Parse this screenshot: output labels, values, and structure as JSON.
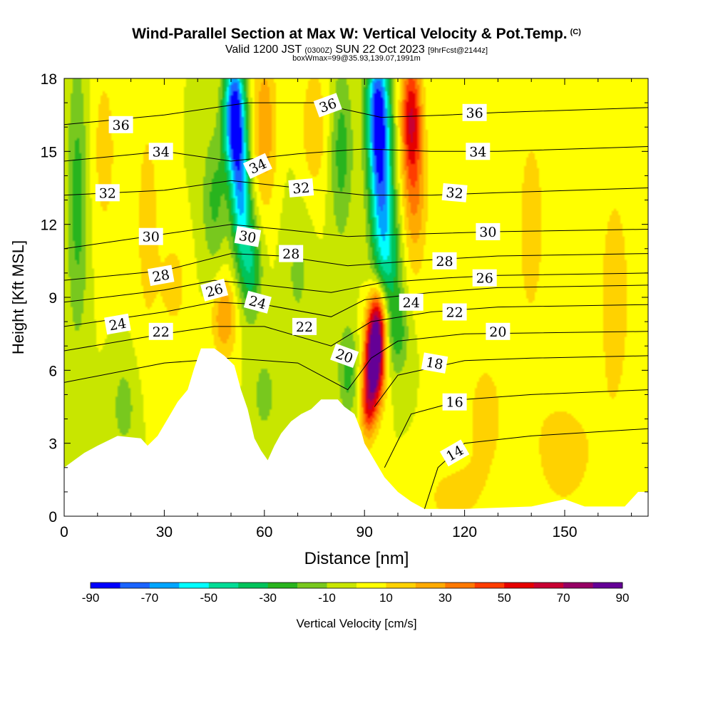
{
  "header": {
    "title": "Wind-Parallel Section at Max W: Vertical Velocity & Pot.Temp.",
    "copyright": "(C)",
    "valid_prefix": "Valid 1200 JST",
    "valid_utc": "(0300Z)",
    "valid_date": "SUN 22 Oct 2023",
    "forecast_info": "[9hrFcst@2144z]",
    "box_info": "boxWmax=99@35.93,139.07,1991m"
  },
  "chart_data": {
    "type": "heatmap",
    "xlabel": "Distance [nm]",
    "ylabel": "Height [Kft MSL]",
    "xlim": [
      0,
      175
    ],
    "ylim": [
      0,
      18
    ],
    "x_ticks": [
      "0",
      "30",
      "60",
      "90",
      "120",
      "150"
    ],
    "y_ticks": [
      "0",
      "3",
      "6",
      "9",
      "12",
      "15",
      "18"
    ],
    "colorbar": {
      "label": "Vertical Velocity [cm/s]",
      "tick_labels": [
        "-90",
        "-70",
        "-50",
        "-30",
        "-10",
        "10",
        "30",
        "50",
        "70",
        "90"
      ],
      "levels": [
        -90,
        -80,
        -70,
        -60,
        -50,
        -40,
        -30,
        -20,
        -10,
        0,
        10,
        20,
        30,
        40,
        50,
        60,
        70,
        80,
        90
      ],
      "colors": [
        "#0000ff",
        "#1a64ff",
        "#00a5ff",
        "#00ffff",
        "#00dc96",
        "#00c35a",
        "#28b41e",
        "#78c81e",
        "#c8e600",
        "#ffff00",
        "#ffd200",
        "#ffaa00",
        "#ff7800",
        "#ff3c00",
        "#e60000",
        "#c80032",
        "#960064",
        "#640096"
      ]
    },
    "terrain_profile_kft": [
      [
        0,
        2.0
      ],
      [
        3,
        2.3
      ],
      [
        6,
        2.6
      ],
      [
        10,
        2.9
      ],
      [
        16,
        3.3
      ],
      [
        23,
        3.2
      ],
      [
        25,
        2.9
      ],
      [
        28,
        3.3
      ],
      [
        31,
        4.0
      ],
      [
        34,
        4.7
      ],
      [
        37,
        5.2
      ],
      [
        39,
        6.1
      ],
      [
        41,
        6.9
      ],
      [
        45,
        6.9
      ],
      [
        48,
        6.6
      ],
      [
        51,
        6.2
      ],
      [
        53,
        5.2
      ],
      [
        55,
        4.4
      ],
      [
        57,
        3.2
      ],
      [
        59,
        2.7
      ],
      [
        61,
        2.3
      ],
      [
        63,
        2.9
      ],
      [
        65,
        3.4
      ],
      [
        68,
        3.9
      ],
      [
        71,
        4.2
      ],
      [
        74,
        4.4
      ],
      [
        77,
        4.8
      ],
      [
        82,
        4.8
      ],
      [
        84,
        4.5
      ],
      [
        87,
        4.2
      ],
      [
        89,
        3.5
      ],
      [
        90,
        3.0
      ],
      [
        93,
        2.3
      ],
      [
        96,
        1.6
      ],
      [
        100,
        1.0
      ],
      [
        104,
        0.6
      ],
      [
        108,
        0.3
      ],
      [
        120,
        0.3
      ],
      [
        140,
        0.4
      ],
      [
        150,
        0.7
      ],
      [
        156,
        0.4
      ],
      [
        168,
        0.4
      ],
      [
        172,
        1.0
      ],
      [
        175,
        1.0
      ]
    ],
    "velocity_features": [
      {
        "x": 51,
        "y": 16.5,
        "sx": 2.2,
        "sy": 1.8,
        "w": -90
      },
      {
        "x": 53,
        "y": 13.2,
        "sx": 2.0,
        "sy": 2.0,
        "w": -55
      },
      {
        "x": 56,
        "y": 10.3,
        "sx": 2.2,
        "sy": 1.5,
        "w": -35
      },
      {
        "x": 94,
        "y": 16.8,
        "sx": 2.4,
        "sy": 1.8,
        "w": -80
      },
      {
        "x": 95,
        "y": 13.5,
        "sx": 2.5,
        "sy": 2.0,
        "w": -60
      },
      {
        "x": 97,
        "y": 10.5,
        "sx": 2.8,
        "sy": 1.6,
        "w": -35
      },
      {
        "x": 100,
        "y": 7.5,
        "sx": 2.2,
        "sy": 1.2,
        "w": -25
      },
      {
        "x": 85,
        "y": 6.0,
        "sx": 2.0,
        "sy": 1.3,
        "w": -25
      },
      {
        "x": 93,
        "y": 6.4,
        "sx": 2.0,
        "sy": 1.3,
        "w": 99
      },
      {
        "x": 94,
        "y": 8.2,
        "sx": 1.8,
        "sy": 1.0,
        "w": 45
      },
      {
        "x": 91,
        "y": 4.5,
        "sx": 1.6,
        "sy": 1.0,
        "w": 40
      },
      {
        "x": 104,
        "y": 16.5,
        "sx": 2.2,
        "sy": 1.8,
        "w": 55
      },
      {
        "x": 105,
        "y": 13.0,
        "sx": 2.6,
        "sy": 2.2,
        "w": 28
      },
      {
        "x": 60,
        "y": 16.0,
        "sx": 2.6,
        "sy": 2.4,
        "w": 28
      },
      {
        "x": 48,
        "y": 8.2,
        "sx": 2.6,
        "sy": 1.2,
        "w": 30
      },
      {
        "x": 45,
        "y": 13.0,
        "sx": 2.6,
        "sy": 2.0,
        "w": -22
      },
      {
        "x": 75,
        "y": 16.0,
        "sx": 3.0,
        "sy": 2.0,
        "w": 18
      },
      {
        "x": 83,
        "y": 15.0,
        "sx": 2.4,
        "sy": 2.5,
        "w": -25
      },
      {
        "x": 4,
        "y": 13.0,
        "sx": 2.2,
        "sy": 4.0,
        "w": -25
      },
      {
        "x": 12,
        "y": 15.0,
        "sx": 3.0,
        "sy": 3.0,
        "w": 14
      },
      {
        "x": 25,
        "y": 12.0,
        "sx": 3.0,
        "sy": 4.0,
        "w": 14
      },
      {
        "x": 140,
        "y": 12.0,
        "sx": 5.0,
        "sy": 5.0,
        "w": 12
      },
      {
        "x": 165,
        "y": 9.0,
        "sx": 5.0,
        "sy": 5.0,
        "w": 13
      },
      {
        "x": 126,
        "y": 4.0,
        "sx": 6.0,
        "sy": 3.0,
        "w": 12
      },
      {
        "x": 150,
        "y": 2.5,
        "sx": 7.0,
        "sy": 2.0,
        "w": 14
      },
      {
        "x": 115,
        "y": 0.8,
        "sx": 6.0,
        "sy": 1.0,
        "w": 12
      },
      {
        "x": 33,
        "y": 9.5,
        "sx": 3.0,
        "sy": 1.5,
        "w": 14
      },
      {
        "x": 70,
        "y": 10.0,
        "sx": 3.0,
        "sy": 2.0,
        "w": -12
      },
      {
        "x": 18,
        "y": 4.5,
        "sx": 3.0,
        "sy": 1.5,
        "w": -14
      },
      {
        "x": 60,
        "y": 5.0,
        "sx": 2.5,
        "sy": 1.2,
        "w": -15
      }
    ],
    "contours": [
      {
        "value": "14",
        "points": [
          [
            108,
            0.3
          ],
          [
            112,
            2.0
          ],
          [
            120,
            3.0
          ],
          [
            140,
            3.3
          ],
          [
            175,
            3.6
          ]
        ]
      },
      {
        "value": "16",
        "points": [
          [
            96,
            2.0
          ],
          [
            104,
            4.2
          ],
          [
            120,
            4.8
          ],
          [
            140,
            5.0
          ],
          [
            175,
            5.2
          ]
        ]
      },
      {
        "value": "18",
        "points": [
          [
            93,
            4.5
          ],
          [
            100,
            5.8
          ],
          [
            120,
            6.4
          ],
          [
            140,
            6.5
          ],
          [
            175,
            6.6
          ]
        ]
      },
      {
        "value": "20",
        "points": [
          [
            0,
            5.5
          ],
          [
            30,
            6.3
          ],
          [
            50,
            6.5
          ],
          [
            70,
            6.3
          ],
          [
            85,
            5.2
          ],
          [
            92,
            6.5
          ],
          [
            100,
            7.2
          ],
          [
            120,
            7.5
          ],
          [
            175,
            7.6
          ]
        ]
      },
      {
        "value": "22",
        "points": [
          [
            0,
            6.8
          ],
          [
            30,
            7.5
          ],
          [
            45,
            7.8
          ],
          [
            60,
            7.8
          ],
          [
            80,
            7.0
          ],
          [
            92,
            8.0
          ],
          [
            110,
            8.4
          ],
          [
            130,
            8.6
          ],
          [
            175,
            8.7
          ]
        ]
      },
      {
        "value": "24",
        "points": [
          [
            0,
            7.8
          ],
          [
            30,
            8.4
          ],
          [
            45,
            8.8
          ],
          [
            60,
            8.7
          ],
          [
            80,
            8.2
          ],
          [
            90,
            8.9
          ],
          [
            110,
            9.2
          ],
          [
            130,
            9.4
          ],
          [
            175,
            9.5
          ]
        ]
      },
      {
        "value": "26",
        "points": [
          [
            0,
            8.8
          ],
          [
            30,
            9.3
          ],
          [
            45,
            9.7
          ],
          [
            60,
            9.5
          ],
          [
            80,
            9.2
          ],
          [
            95,
            9.6
          ],
          [
            115,
            9.8
          ],
          [
            130,
            9.9
          ],
          [
            175,
            10.0
          ]
        ]
      },
      {
        "value": "28",
        "points": [
          [
            0,
            9.7
          ],
          [
            30,
            10.1
          ],
          [
            50,
            10.8
          ],
          [
            65,
            10.7
          ],
          [
            85,
            10.3
          ],
          [
            105,
            10.5
          ],
          [
            130,
            10.7
          ],
          [
            175,
            10.8
          ]
        ]
      },
      {
        "value": "30",
        "points": [
          [
            0,
            11.0
          ],
          [
            30,
            11.6
          ],
          [
            50,
            12.0
          ],
          [
            65,
            11.8
          ],
          [
            85,
            11.5
          ],
          [
            105,
            11.6
          ],
          [
            130,
            11.7
          ],
          [
            175,
            11.8
          ]
        ]
      },
      {
        "value": "32",
        "points": [
          [
            0,
            13.2
          ],
          [
            30,
            13.4
          ],
          [
            50,
            13.8
          ],
          [
            70,
            13.5
          ],
          [
            90,
            13.2
          ],
          [
            110,
            13.2
          ],
          [
            130,
            13.3
          ],
          [
            175,
            13.5
          ]
        ]
      },
      {
        "value": "34",
        "points": [
          [
            0,
            14.6
          ],
          [
            30,
            15.0
          ],
          [
            50,
            14.6
          ],
          [
            70,
            14.9
          ],
          [
            90,
            15.1
          ],
          [
            110,
            15.0
          ],
          [
            130,
            15.0
          ],
          [
            175,
            15.2
          ]
        ]
      },
      {
        "value": "36",
        "points": [
          [
            0,
            16.1
          ],
          [
            30,
            16.5
          ],
          [
            55,
            17.0
          ],
          [
            75,
            17.0
          ],
          [
            95,
            16.4
          ],
          [
            115,
            16.5
          ],
          [
            130,
            16.6
          ],
          [
            175,
            16.8
          ]
        ]
      }
    ],
    "contour_labels": [
      {
        "text": "36",
        "x": 17,
        "y": 16.1,
        "angle": 0
      },
      {
        "text": "36",
        "x": 79,
        "y": 16.9,
        "angle": -20
      },
      {
        "text": "36",
        "x": 123,
        "y": 16.6,
        "angle": 0
      },
      {
        "text": "34",
        "x": 29,
        "y": 15.0,
        "angle": 0
      },
      {
        "text": "34",
        "x": 58,
        "y": 14.4,
        "angle": -25
      },
      {
        "text": "34",
        "x": 124,
        "y": 15.0,
        "angle": 0
      },
      {
        "text": "32",
        "x": 13,
        "y": 13.3,
        "angle": 0
      },
      {
        "text": "32",
        "x": 71,
        "y": 13.5,
        "angle": -5
      },
      {
        "text": "32",
        "x": 117,
        "y": 13.3,
        "angle": 5
      },
      {
        "text": "30",
        "x": 26,
        "y": 11.5,
        "angle": 0
      },
      {
        "text": "30",
        "x": 55,
        "y": 11.5,
        "angle": 10
      },
      {
        "text": "30",
        "x": 127,
        "y": 11.7,
        "angle": 0
      },
      {
        "text": "28",
        "x": 29,
        "y": 9.9,
        "angle": -10
      },
      {
        "text": "28",
        "x": 68,
        "y": 10.8,
        "angle": 0
      },
      {
        "text": "28",
        "x": 114,
        "y": 10.5,
        "angle": 0
      },
      {
        "text": "26",
        "x": 45,
        "y": 9.3,
        "angle": -15
      },
      {
        "text": "26",
        "x": 126,
        "y": 9.8,
        "angle": 0
      },
      {
        "text": "24",
        "x": 16,
        "y": 7.9,
        "angle": -10
      },
      {
        "text": "24",
        "x": 58,
        "y": 8.8,
        "angle": 15
      },
      {
        "text": "24",
        "x": 104,
        "y": 8.8,
        "angle": 0
      },
      {
        "text": "22",
        "x": 29,
        "y": 7.6,
        "angle": 0
      },
      {
        "text": "22",
        "x": 72,
        "y": 7.8,
        "angle": 0
      },
      {
        "text": "22",
        "x": 117,
        "y": 8.4,
        "angle": 0
      },
      {
        "text": "20",
        "x": 84,
        "y": 6.6,
        "angle": 20
      },
      {
        "text": "20",
        "x": 130,
        "y": 7.6,
        "angle": 0
      },
      {
        "text": "18",
        "x": 111,
        "y": 6.3,
        "angle": 10
      },
      {
        "text": "16",
        "x": 117,
        "y": 4.7,
        "angle": 0
      },
      {
        "text": "14",
        "x": 117,
        "y": 2.6,
        "angle": -30
      }
    ]
  }
}
